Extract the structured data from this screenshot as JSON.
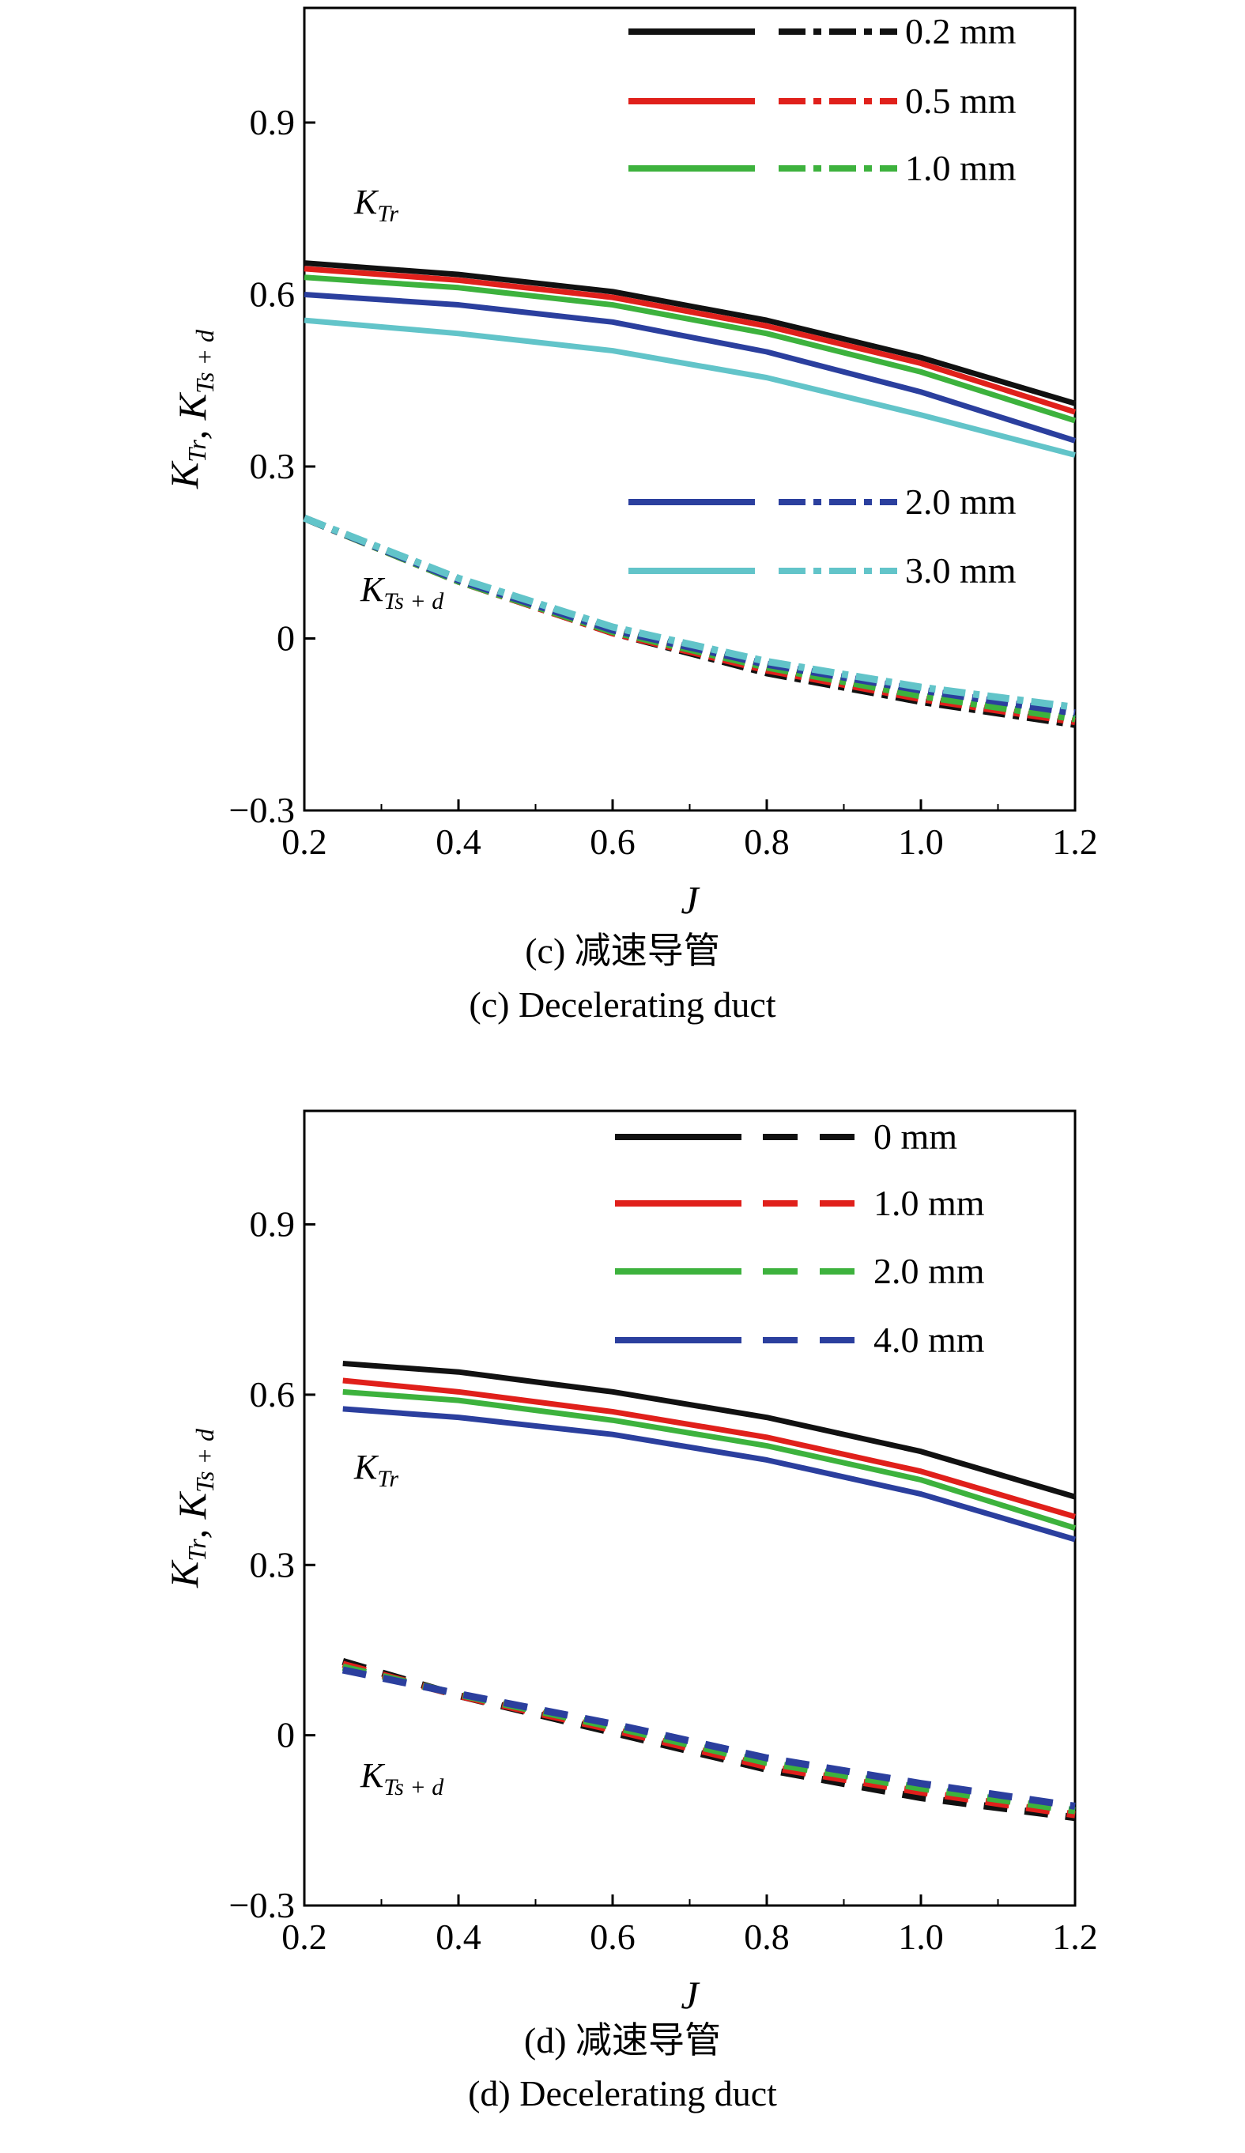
{
  "chart_data": [
    {
      "id": "c",
      "type": "line",
      "title": "",
      "caption_cn": "(c) 减速导管",
      "caption_en": "(c) Decelerating duct",
      "xlabel": "J",
      "ylabel": "K_Tr, K_Ts + d",
      "xlim": [
        0.2,
        1.2
      ],
      "ylim": [
        -0.3,
        1.1
      ],
      "xticks": [
        "0.2",
        "0.4",
        "0.6",
        "0.8",
        "1.0",
        "1.2"
      ],
      "yticks": [
        {
          "value": -0.3,
          "label": "−0.3"
        },
        {
          "value": 0,
          "label": "0"
        },
        {
          "value": 0.3,
          "label": "0.3"
        },
        {
          "value": 0.6,
          "label": "0.6"
        },
        {
          "value": 0.9,
          "label": "0.9"
        }
      ],
      "grid": false,
      "legend_style": "dashdot",
      "legend_groups": [
        {
          "placement": "top-right",
          "items": [
            0,
            1,
            2
          ]
        },
        {
          "placement": "middle-right",
          "items": [
            3,
            4
          ]
        }
      ],
      "annotations": [
        {
          "base": "K",
          "sub": "Tr",
          "at": [
            0.27,
            0.72
          ]
        },
        {
          "base": "K",
          "sub": "Ts + d",
          "at": [
            0.27,
            0.06
          ]
        }
      ],
      "series": [
        {
          "name": "0.2 mm",
          "color": "#111111",
          "x": [
            0.2,
            0.4,
            0.6,
            0.8,
            1.0,
            1.2
          ],
          "kt_r": [
            0.655,
            0.635,
            0.605,
            0.555,
            0.49,
            0.41
          ],
          "kt_sd": [
            0.21,
            0.1,
            0.01,
            -0.06,
            -0.11,
            -0.15
          ]
        },
        {
          "name": "0.5 mm",
          "color": "#e0201b",
          "x": [
            0.2,
            0.4,
            0.6,
            0.8,
            1.0,
            1.2
          ],
          "kt_r": [
            0.645,
            0.625,
            0.595,
            0.545,
            0.48,
            0.395
          ],
          "kt_sd": [
            0.21,
            0.1,
            0.01,
            -0.055,
            -0.105,
            -0.145
          ]
        },
        {
          "name": "1.0 mm",
          "color": "#3db23d",
          "x": [
            0.2,
            0.4,
            0.6,
            0.8,
            1.0,
            1.2
          ],
          "kt_r": [
            0.63,
            0.612,
            0.582,
            0.532,
            0.465,
            0.38
          ],
          "kt_sd": [
            0.21,
            0.1,
            0.012,
            -0.05,
            -0.1,
            -0.14
          ]
        },
        {
          "name": "2.0 mm",
          "color": "#2b3f9e",
          "x": [
            0.2,
            0.4,
            0.6,
            0.8,
            1.0,
            1.2
          ],
          "kt_r": [
            0.6,
            0.582,
            0.552,
            0.5,
            0.43,
            0.345
          ],
          "kt_sd": [
            0.21,
            0.102,
            0.015,
            -0.045,
            -0.09,
            -0.13
          ]
        },
        {
          "name": "3.0 mm",
          "color": "#62c4c9",
          "x": [
            0.2,
            0.4,
            0.6,
            0.8,
            1.0,
            1.2
          ],
          "kt_r": [
            0.555,
            0.532,
            0.502,
            0.455,
            0.39,
            0.32
          ],
          "kt_sd": [
            0.21,
            0.105,
            0.02,
            -0.04,
            -0.085,
            -0.12
          ]
        }
      ]
    },
    {
      "id": "d",
      "type": "line",
      "title": "",
      "caption_cn": "(d) 减速导管",
      "caption_en": "(d) Decelerating duct",
      "xlabel": "J",
      "ylabel": "K_Tr, K_Ts + d",
      "xlim": [
        0.2,
        1.2
      ],
      "ylim": [
        -0.3,
        1.1
      ],
      "xticks": [
        "0.2",
        "0.4",
        "0.6",
        "0.8",
        "1.0",
        "1.2"
      ],
      "yticks": [
        {
          "value": -0.3,
          "label": "−0.3"
        },
        {
          "value": 0,
          "label": "0"
        },
        {
          "value": 0.3,
          "label": "0.3"
        },
        {
          "value": 0.6,
          "label": "0.6"
        },
        {
          "value": 0.9,
          "label": "0.9"
        }
      ],
      "grid": false,
      "legend_style": "dashed",
      "legend_groups": [
        {
          "placement": "top-right",
          "items": [
            0,
            1,
            2,
            3
          ]
        }
      ],
      "annotations": [
        {
          "base": "K",
          "sub": "Tr",
          "at": [
            0.27,
            0.47
          ]
        },
        {
          "base": "K",
          "sub": "Ts + d",
          "at": [
            0.27,
            -0.025
          ]
        }
      ],
      "series": [
        {
          "name": "0 mm",
          "color": "#111111",
          "x": [
            0.25,
            0.4,
            0.6,
            0.8,
            1.0,
            1.2
          ],
          "kt_r": [
            0.655,
            0.64,
            0.605,
            0.56,
            0.5,
            0.42
          ],
          "kt_sd": [
            0.13,
            0.07,
            0.005,
            -0.06,
            -0.11,
            -0.145
          ]
        },
        {
          "name": "1.0 mm",
          "color": "#e0201b",
          "x": [
            0.25,
            0.4,
            0.6,
            0.8,
            1.0,
            1.2
          ],
          "kt_r": [
            0.625,
            0.605,
            0.57,
            0.525,
            0.465,
            0.385
          ],
          "kt_sd": [
            0.125,
            0.07,
            0.01,
            -0.055,
            -0.1,
            -0.14
          ]
        },
        {
          "name": "2.0 mm",
          "color": "#3db23d",
          "x": [
            0.25,
            0.4,
            0.6,
            0.8,
            1.0,
            1.2
          ],
          "kt_r": [
            0.605,
            0.59,
            0.555,
            0.51,
            0.45,
            0.365
          ],
          "kt_sd": [
            0.12,
            0.072,
            0.015,
            -0.048,
            -0.093,
            -0.133
          ]
        },
        {
          "name": "4.0 mm",
          "color": "#2b3f9e",
          "x": [
            0.25,
            0.4,
            0.6,
            0.8,
            1.0,
            1.2
          ],
          "kt_r": [
            0.575,
            0.56,
            0.53,
            0.485,
            0.425,
            0.345
          ],
          "kt_sd": [
            0.115,
            0.073,
            0.02,
            -0.04,
            -0.085,
            -0.125
          ]
        }
      ]
    }
  ]
}
